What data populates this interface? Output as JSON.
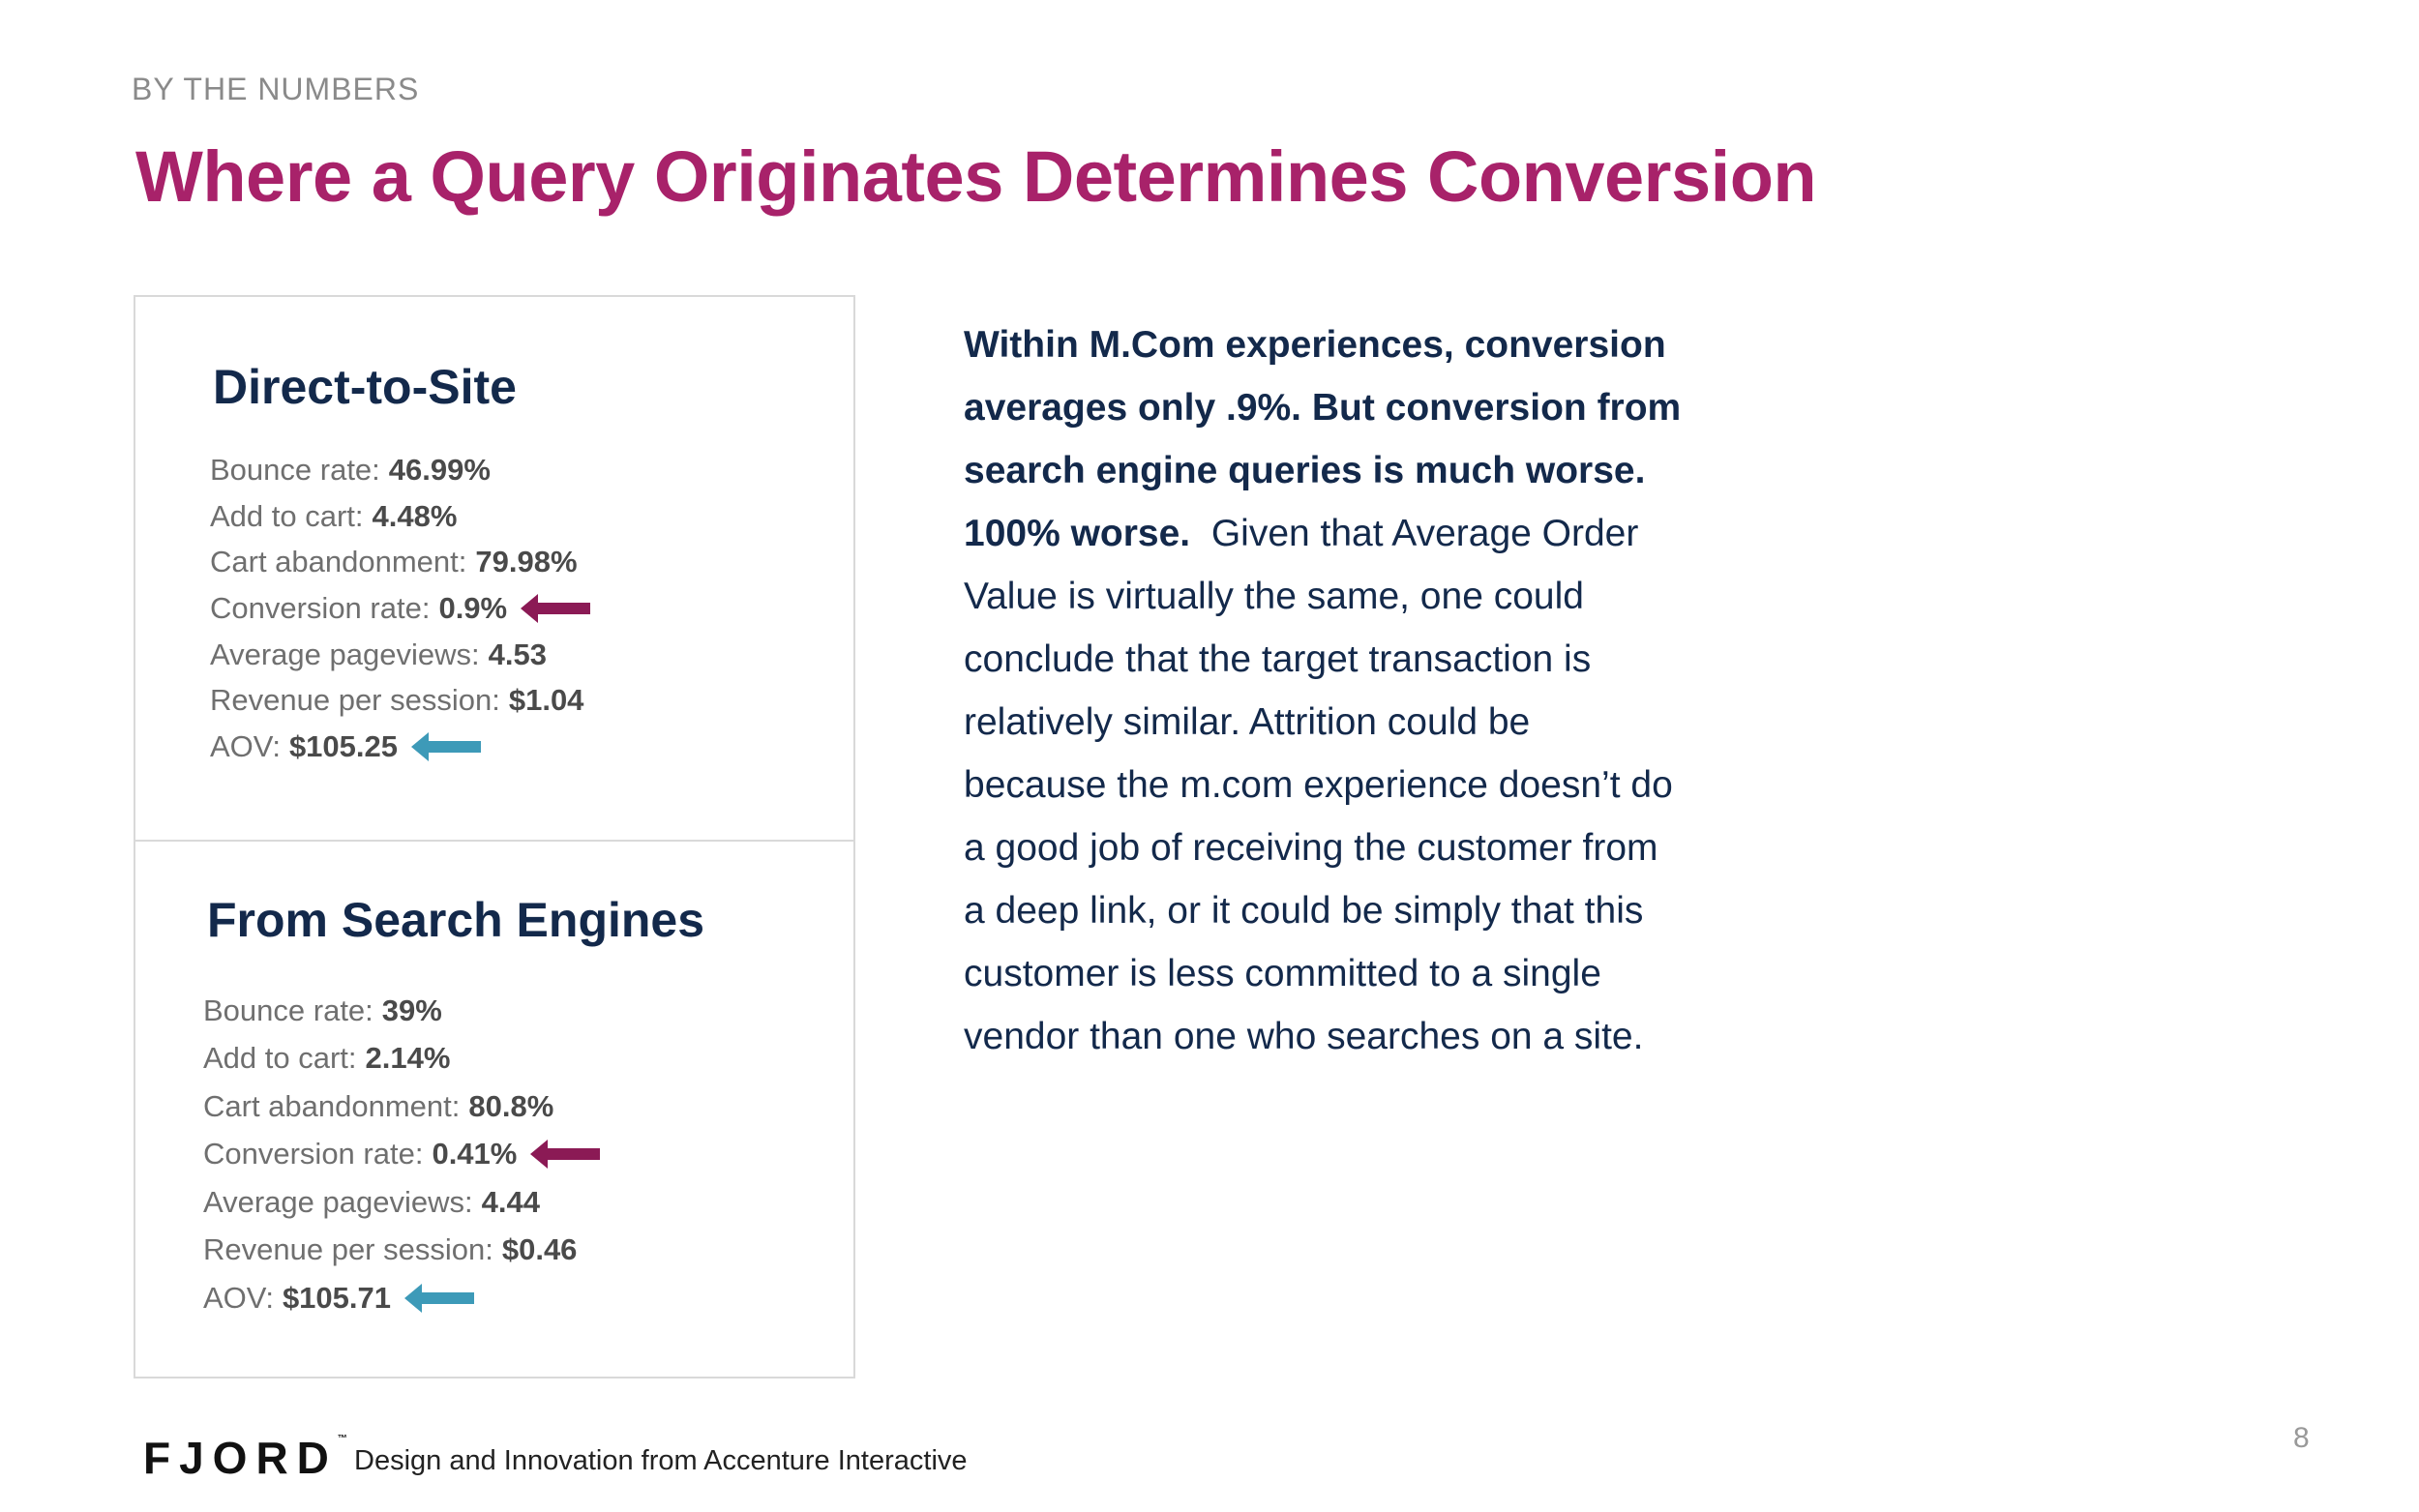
{
  "header": {
    "eyebrow": "BY THE NUMBERS",
    "title": "Where a Query Originates Determines Conversion"
  },
  "direct": {
    "title": "Direct-to-Site",
    "stats": [
      {
        "label": "Bounce rate:",
        "value": "46.99%"
      },
      {
        "label": "Add to cart:",
        "value": "4.48%"
      },
      {
        "label": "Cart abandonment:",
        "value": "79.98%"
      },
      {
        "label": "Conversion rate:",
        "value": "0.9%"
      },
      {
        "label": "Average pageviews:",
        "value": "4.53"
      },
      {
        "label": "Revenue per session:",
        "value": "$1.04"
      },
      {
        "label": "AOV:",
        "value": "$105.25"
      }
    ]
  },
  "search": {
    "title": "From Search Engines",
    "stats": [
      {
        "label": "Bounce rate:",
        "value": "39%"
      },
      {
        "label": "Add to cart:",
        "value": "2.14%"
      },
      {
        "label": "Cart abandonment:",
        "value": "80.8%"
      },
      {
        "label": "Conversion rate:",
        "value": "0.41%"
      },
      {
        "label": "Average pageviews:",
        "value": "4.44"
      },
      {
        "label": "Revenue per session:",
        "value": "$0.46"
      },
      {
        "label": "AOV:",
        "value": "$105.71"
      }
    ]
  },
  "body": {
    "bold_lines": [
      "Within M.Com experiences, conversion",
      "averages only .9%.  But conversion from",
      "search engine queries is much worse.",
      "100% worse."
    ],
    "regular_first": "Given that Average Order",
    "regular_lines": [
      "Value is virtually the same, one could",
      "conclude that the target transaction is",
      "relatively similar.  Attrition could be",
      "because the m.com experience doesn’t do",
      "a good job of receiving the customer from",
      "a deep link, or it could be simply that this",
      "customer is less committed to a single",
      "vendor than one who searches on a site."
    ]
  },
  "footer": {
    "logo": "FJORD",
    "logo_mark": "™",
    "tagline": "Design and Innovation from Accenture Interactive",
    "page_number": "8"
  },
  "colors": {
    "title": "#a8226a",
    "heading": "#13294b",
    "arrow_conversion": "#8b1a55",
    "arrow_aov": "#3d9ab8"
  },
  "icons": {
    "conversion_arrow": "arrow-left-icon",
    "aov_arrow": "arrow-left-icon"
  }
}
